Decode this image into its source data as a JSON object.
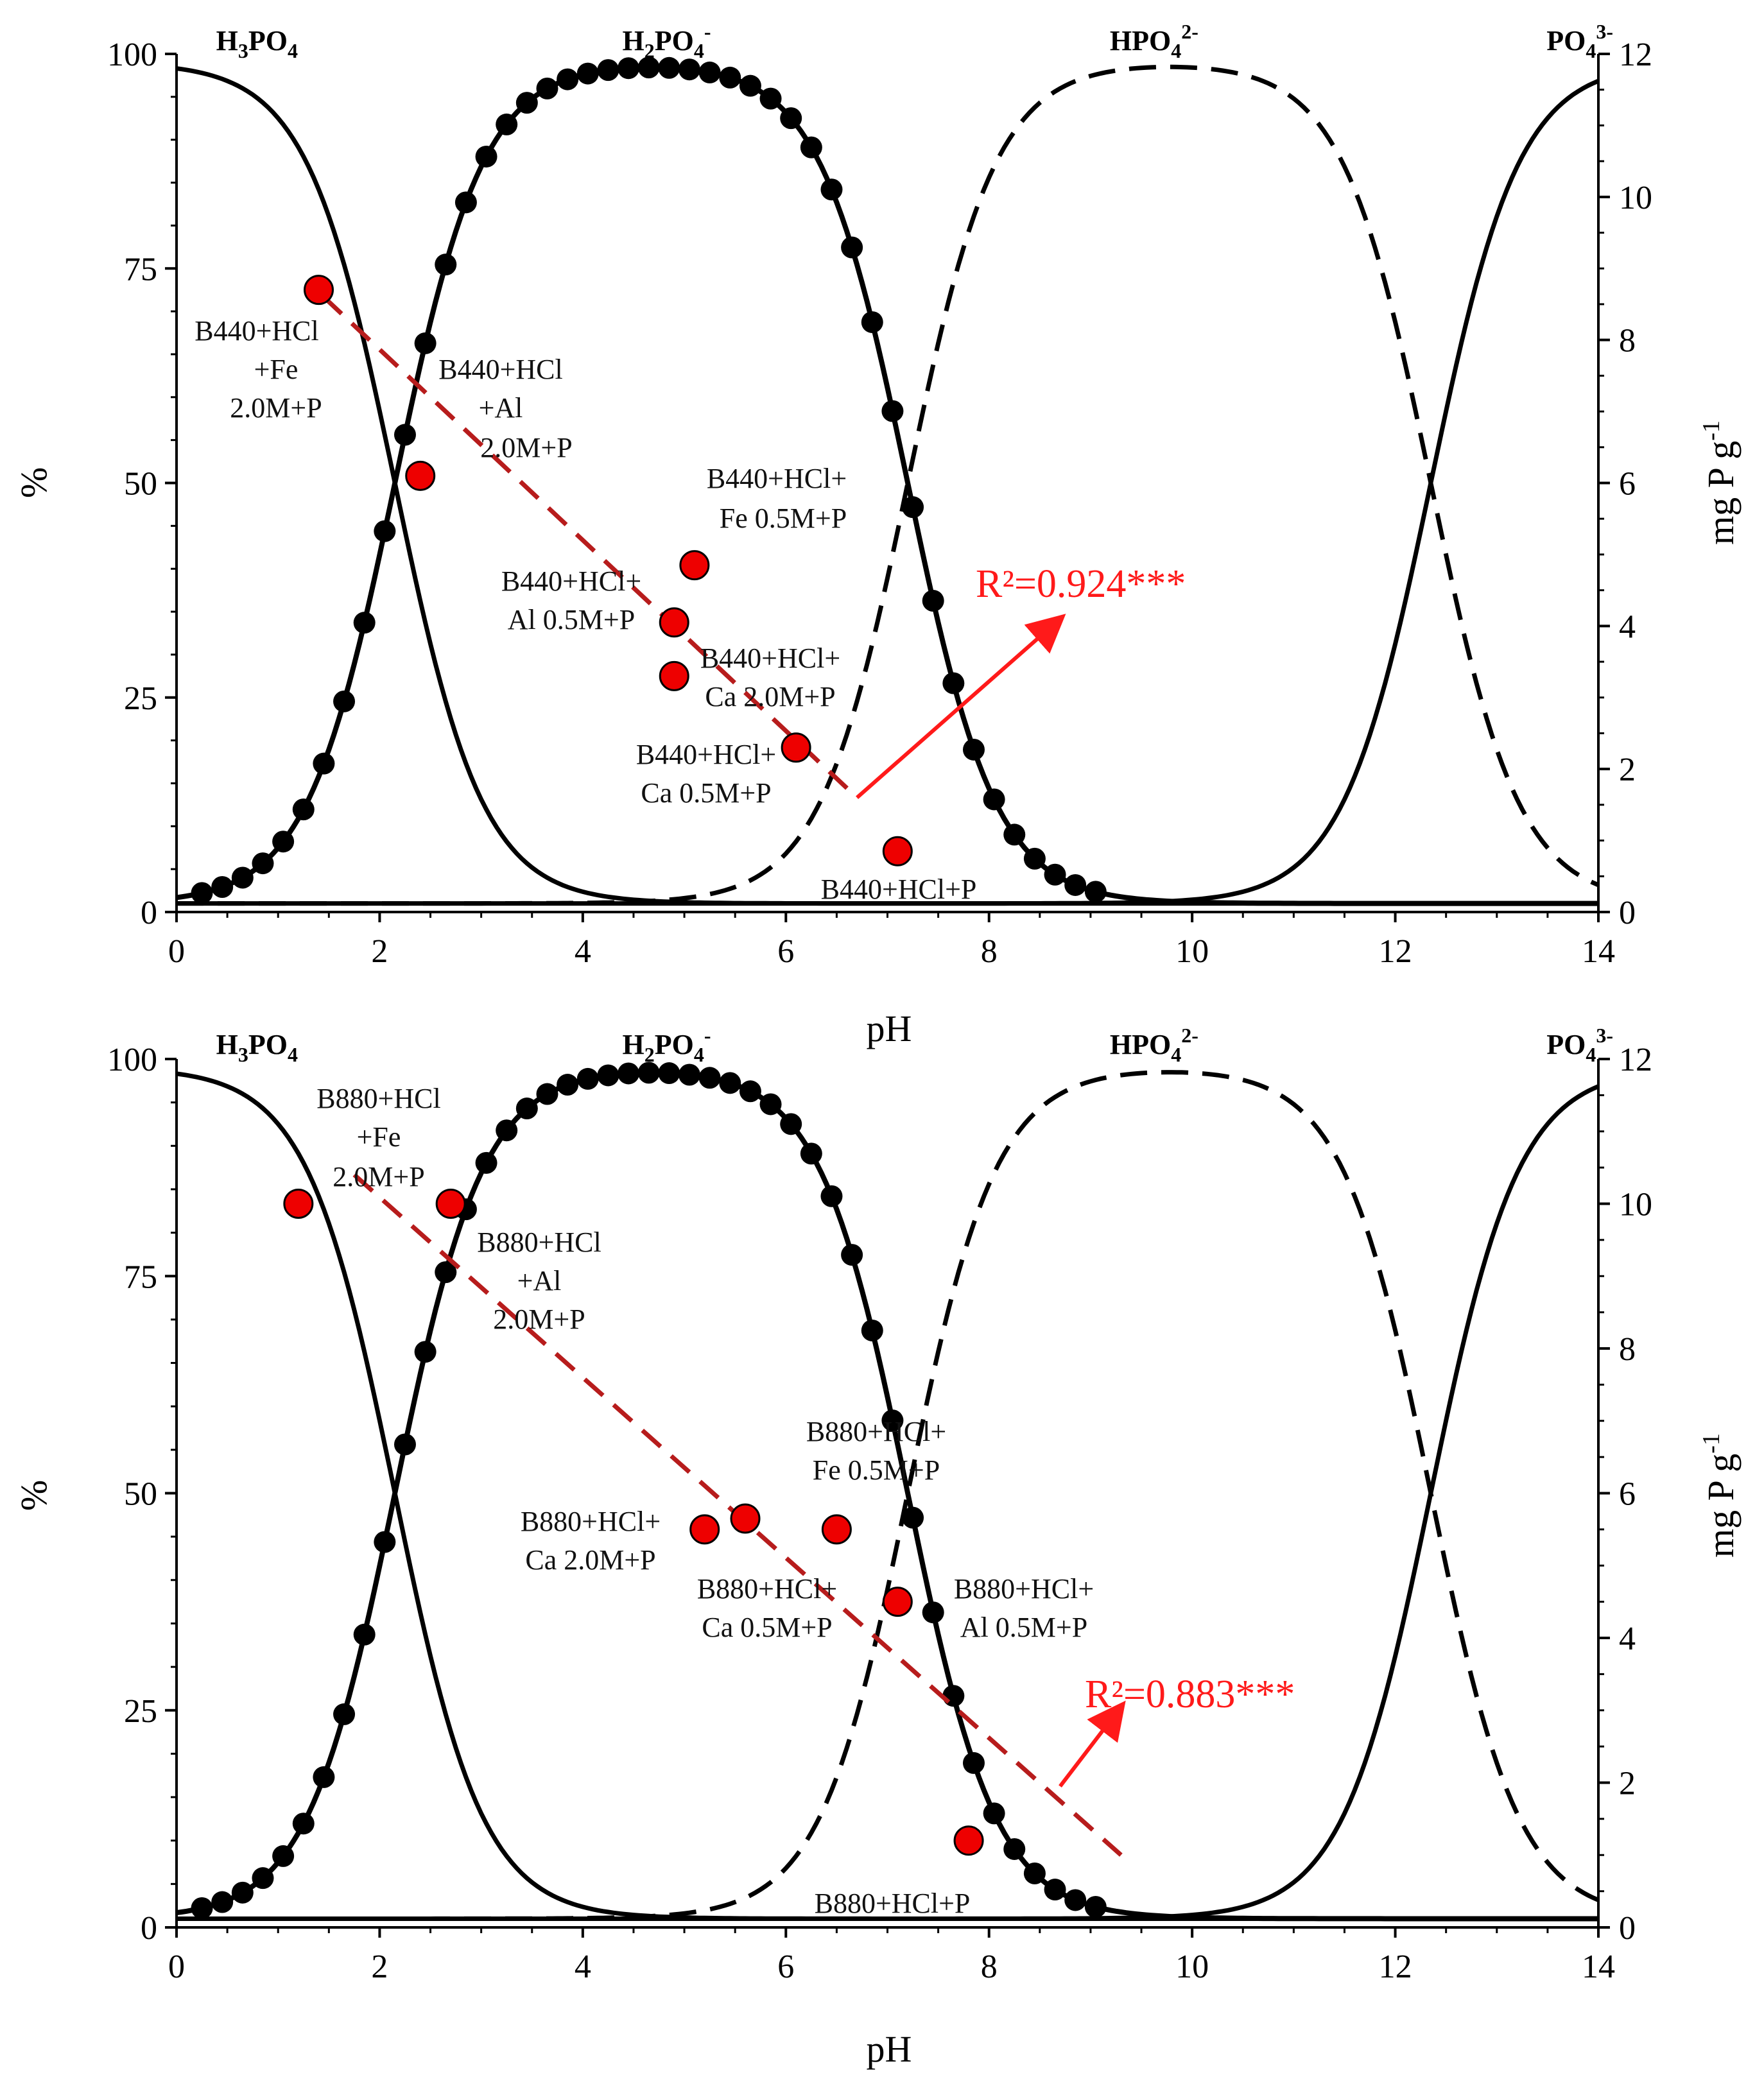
{
  "chart_data": [
    {
      "type": "scatter",
      "title": "",
      "xlabel": "pH",
      "ylabel": "%",
      "y2label": "mg P g-1",
      "xlim": [
        0,
        14
      ],
      "ylim": [
        0,
        100
      ],
      "y2lim": [
        0,
        12
      ],
      "xticks": [
        "0",
        "2",
        "4",
        "6",
        "8",
        "10",
        "12",
        "14"
      ],
      "yticks": [
        "0",
        "25",
        "50",
        "75",
        "100"
      ],
      "y2ticks": [
        "0",
        "2",
        "4",
        "6",
        "8",
        "10",
        "12"
      ],
      "species_labels": [
        {
          "base": "H",
          "sub1": "3",
          "mid": "PO",
          "sub2": "4",
          "sup": "",
          "pH": 0.2
        },
        {
          "base": "H",
          "sub1": "2",
          "mid": "PO",
          "sub2": "4",
          "sup": "-",
          "pH": 4.2
        },
        {
          "base": "HPO",
          "sub1": "",
          "mid": "",
          "sub2": "4",
          "sup": "2-",
          "pH": 9.0
        },
        {
          "base": "PO",
          "sub1": "",
          "mid": "",
          "sub2": "4",
          "sup": "3-",
          "pH": 13.3
        }
      ],
      "species_curves": {
        "pKa": [
          2.15,
          7.2,
          12.35
        ],
        "H3PO4": "solid",
        "H2PO4-": "solid with dot markers",
        "HPO4_2-": "dashed",
        "PO4_3-": "solid"
      },
      "series": [
        {
          "name": "B440+HCl+Fe 2.0M+P",
          "pH": 1.4,
          "mgP": 8.7,
          "label_lines": [
            "B440+HCl",
            "+Fe",
            "2.0M+P"
          ]
        },
        {
          "name": "B440+HCl+Al 2.0M+P",
          "pH": 2.4,
          "mgP": 6.1,
          "label_lines": [
            "B440+HCl",
            "+Al",
            "2.0M+P"
          ]
        },
        {
          "name": "B440+HCl+Fe 0.5M+P",
          "pH": 5.1,
          "mgP": 4.85,
          "label_lines": [
            "B440+HCl+",
            "Fe 0.5M+P"
          ]
        },
        {
          "name": "B440+HCl+Al 0.5M+P",
          "pH": 4.9,
          "mgP": 4.05,
          "label_lines": [
            "B440+HCl+",
            "Al 0.5M+P"
          ]
        },
        {
          "name": "B440+HCl+Ca 2.0M+P",
          "pH": 4.9,
          "mgP": 3.3,
          "label_lines": [
            "B440+HCl+",
            "Ca 2.0M+P"
          ]
        },
        {
          "name": "B440+HCl+Ca 0.5M+P",
          "pH": 6.1,
          "mgP": 2.3,
          "label_lines": [
            "B440+HCl+",
            "Ca 0.5M+P"
          ]
        },
        {
          "name": "B440+HCl+P",
          "pH": 7.1,
          "mgP": 0.85,
          "label_lines": [
            "B440+HCl+P"
          ]
        }
      ],
      "trendline": {
        "x": [
          1.45,
          6.7
        ],
        "y": [
          8.6,
          1.6
        ],
        "style": "dashed",
        "color": "#b71c1c"
      },
      "r2_text": "R²=0.924***",
      "r2_arrow": {
        "from": [
          6.7,
          1.6
        ],
        "to": [
          8.7,
          4.1
        ]
      }
    },
    {
      "type": "scatter",
      "title": "",
      "xlabel": "pH",
      "ylabel": "%",
      "y2label": "mg P g-1",
      "xlim": [
        0,
        14
      ],
      "ylim": [
        0,
        100
      ],
      "y2lim": [
        0,
        12
      ],
      "xticks": [
        "0",
        "2",
        "4",
        "6",
        "8",
        "10",
        "12",
        "14"
      ],
      "yticks": [
        "0",
        "25",
        "50",
        "75",
        "100"
      ],
      "y2ticks": [
        "0",
        "2",
        "4",
        "6",
        "8",
        "10",
        "12"
      ],
      "species_labels": [
        {
          "base": "H",
          "sub1": "3",
          "mid": "PO",
          "sub2": "4",
          "sup": "",
          "pH": 0.2
        },
        {
          "base": "H",
          "sub1": "2",
          "mid": "PO",
          "sub2": "4",
          "sup": "-",
          "pH": 4.2
        },
        {
          "base": "HPO",
          "sub1": "",
          "mid": "",
          "sub2": "4",
          "sup": "2-",
          "pH": 9.0
        },
        {
          "base": "PO",
          "sub1": "",
          "mid": "",
          "sub2": "4",
          "sup": "3-",
          "pH": 13.3
        }
      ],
      "species_curves": {
        "pKa": [
          2.15,
          7.2,
          12.35
        ],
        "H3PO4": "solid",
        "H2PO4-": "solid with dot markers",
        "HPO4_2-": "dashed",
        "PO4_3-": "solid"
      },
      "series": [
        {
          "name": "B880+HCl+Fe 2.0M+P",
          "pH": 1.2,
          "mgP": 10.0,
          "label_lines": [
            "B880+HCl",
            "+Fe",
            "2.0M+P"
          ]
        },
        {
          "name": "B880+HCl+Al 2.0M+P",
          "pH": 2.7,
          "mgP": 10.0,
          "label_lines": [
            "B880+HCl",
            "+Al",
            "2.0M+P"
          ]
        },
        {
          "name": "B880+HCl+Fe 0.5M+P",
          "pH": 6.5,
          "mgP": 5.5,
          "label_lines": [
            "B880+HCl+",
            "Fe 0.5M+P"
          ]
        },
        {
          "name": "B880+HCl+Ca 2.0M+P",
          "pH": 5.2,
          "mgP": 5.5,
          "label_lines": [
            "B880+HCl+",
            "Ca 2.0M+P"
          ]
        },
        {
          "name": "B880+HCl+Ca 0.5M+P",
          "pH": 5.6,
          "mgP": 5.65,
          "label_lines": [
            "B880+HCl+",
            "Ca 0.5M+P"
          ]
        },
        {
          "name": "B880+HCl+Al 0.5M+P",
          "pH": 7.1,
          "mgP": 4.5,
          "label_lines": [
            "B880+HCl+",
            "Al 0.5M+P"
          ]
        },
        {
          "name": "B880+HCl+P",
          "pH": 7.8,
          "mgP": 1.2,
          "label_lines": [
            "B880+HCl+P"
          ]
        }
      ],
      "trendline": {
        "x": [
          1.75,
          9.3
        ],
        "y": [
          10.4,
          1.0
        ],
        "style": "dashed",
        "color": "#b71c1c"
      },
      "r2_text": "R²=0.883***",
      "r2_arrow": {
        "from": [
          8.7,
          1.95
        ],
        "to": [
          9.3,
          3.05
        ]
      }
    }
  ]
}
